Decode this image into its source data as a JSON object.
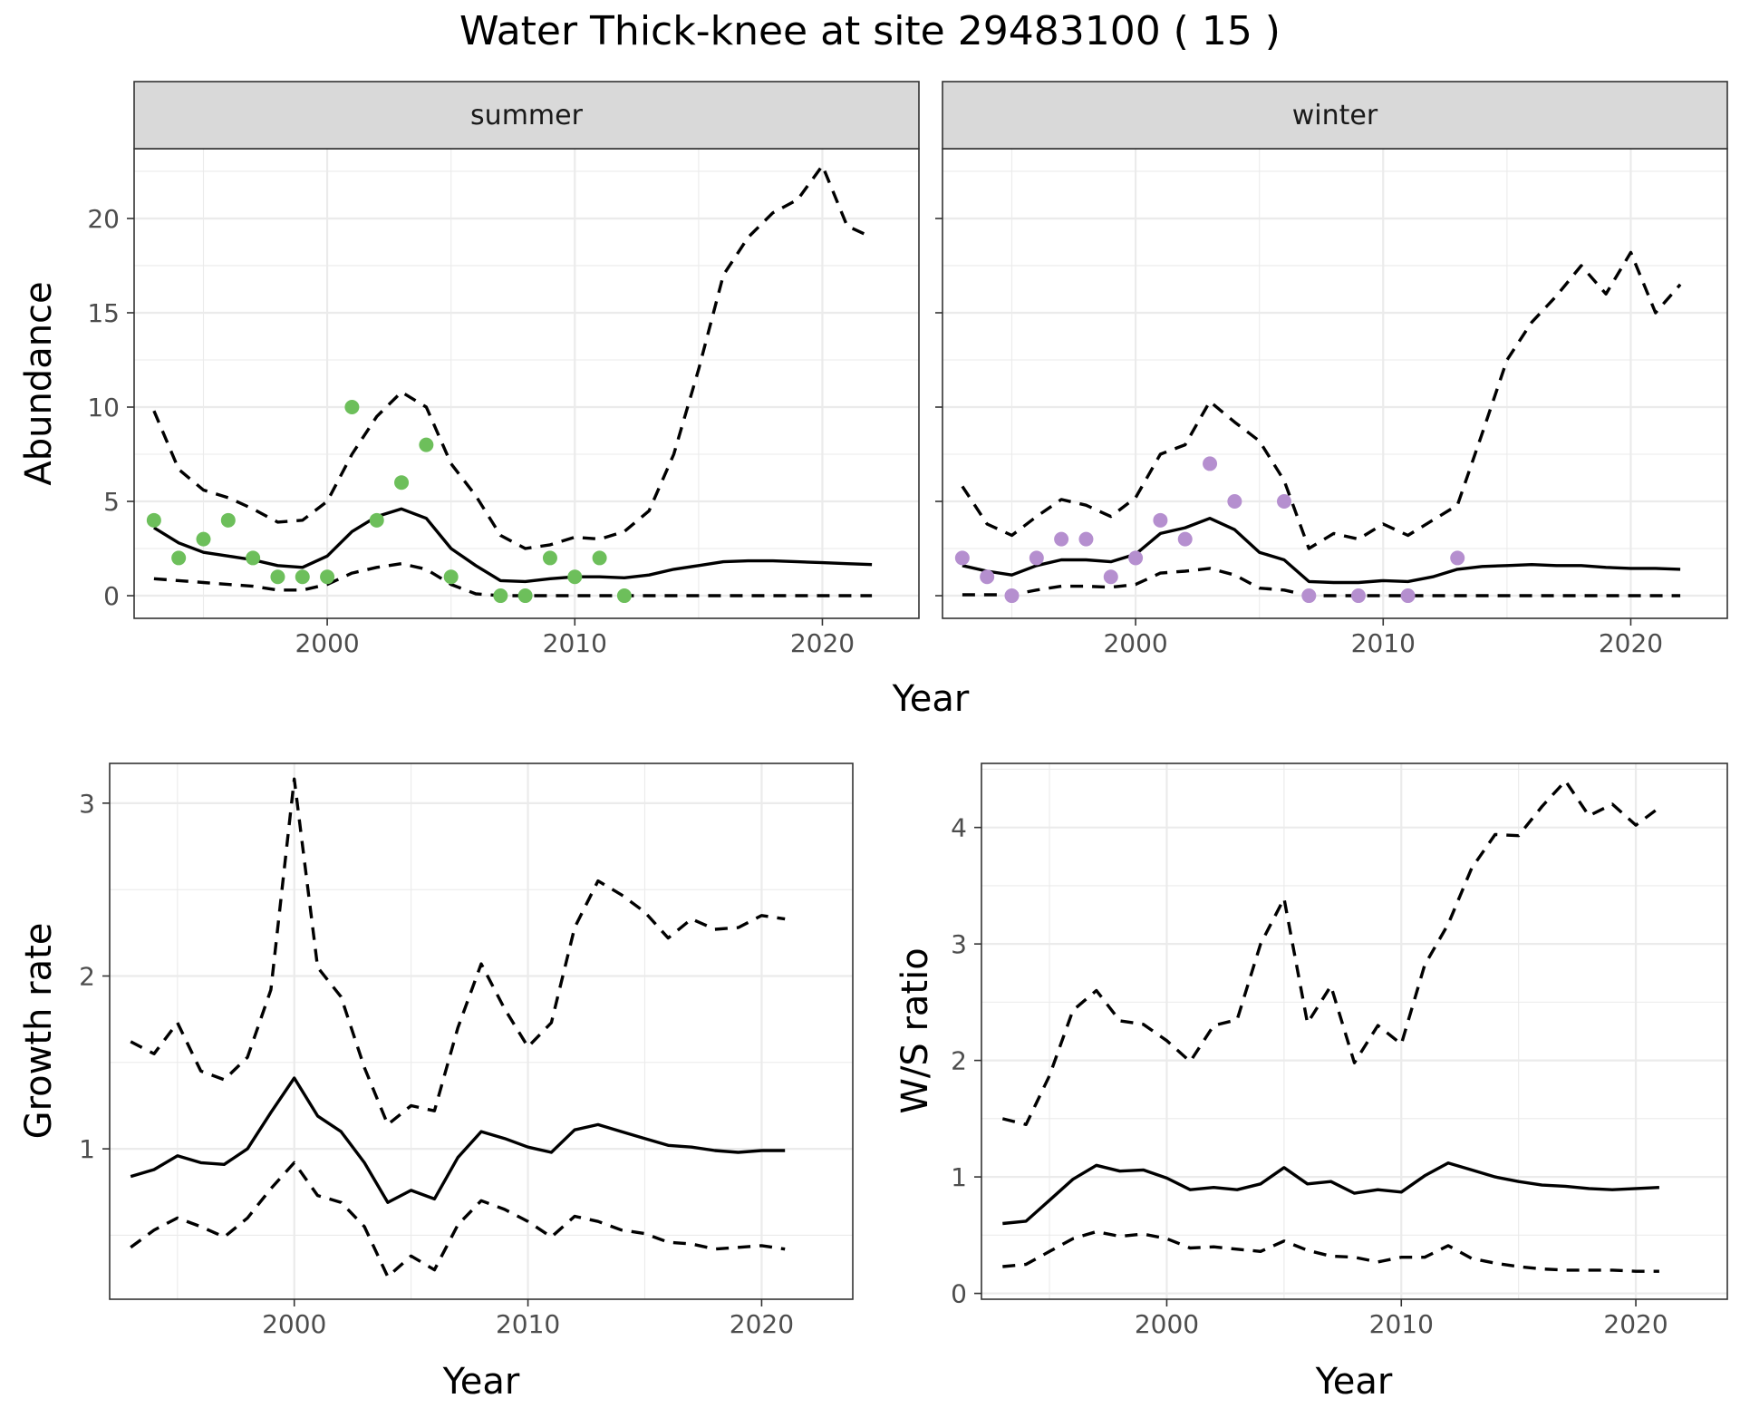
{
  "title": "Water Thick-knee at site 29483100 ( 15 )",
  "colors": {
    "summer_points": "#6dbf5b",
    "winter_points": "#b58fcf"
  },
  "chart_data": [
    {
      "type": "line",
      "facet": "summer",
      "xlabel": "Year",
      "ylabel": "Abundance",
      "xlim": [
        1992.2,
        2023.9
      ],
      "ylim": [
        -1.2,
        23.7
      ],
      "xticks": [
        2000,
        2010,
        2020
      ],
      "yticks": [
        0,
        5,
        10,
        15,
        20
      ],
      "grid": true,
      "points_color": "#6dbf5b",
      "points": {
        "x": [
          1993,
          1994,
          1995,
          1996,
          1997,
          1998,
          1999,
          2000,
          2001,
          2002,
          2003,
          2004,
          2005,
          2007,
          2008,
          2009,
          2010,
          2011,
          2012
        ],
        "y": [
          4,
          2,
          3,
          4,
          2,
          1,
          1,
          1,
          10,
          4,
          6,
          8,
          1,
          0,
          0,
          2,
          1,
          2,
          0
        ]
      },
      "series": [
        {
          "x": [
            1993,
            1994,
            1995,
            1996,
            1997,
            1998,
            1999,
            2000,
            2001,
            2002,
            2003,
            2004,
            2005,
            2006,
            2007,
            2008,
            2009,
            2010,
            2011,
            2012,
            2013,
            2014,
            2015,
            2016,
            2017,
            2018,
            2019,
            2020,
            2021,
            2022
          ],
          "values": [
            3.6,
            2.8,
            2.3,
            2.1,
            1.9,
            1.6,
            1.5,
            2.1,
            3.4,
            4.2,
            4.6,
            4.1,
            2.5,
            1.6,
            0.8,
            0.75,
            0.9,
            1.0,
            1.0,
            0.95,
            1.1,
            1.4,
            1.6,
            1.8,
            1.85,
            1.85,
            1.8,
            1.75,
            1.7,
            1.65
          ],
          "style": "solid"
        },
        {
          "x": [
            1993,
            1994,
            1995,
            1996,
            1997,
            1998,
            1999,
            2000,
            2001,
            2002,
            2003,
            2004,
            2005,
            2006,
            2007,
            2008,
            2009,
            2010,
            2011,
            2012,
            2013,
            2014,
            2015,
            2016,
            2017,
            2018,
            2019,
            2020,
            2021,
            2022
          ],
          "values": [
            9.8,
            6.7,
            5.6,
            5.2,
            4.6,
            3.9,
            4.0,
            5.0,
            7.5,
            9.5,
            10.8,
            10.0,
            7.0,
            5.3,
            3.2,
            2.5,
            2.7,
            3.1,
            3.0,
            3.4,
            4.5,
            7.5,
            12.0,
            17.0,
            19.0,
            20.3,
            21.0,
            22.8,
            19.6,
            19.0
          ],
          "style": "dashed"
        },
        {
          "x": [
            1993,
            1994,
            1995,
            1996,
            1997,
            1998,
            1999,
            2000,
            2001,
            2002,
            2003,
            2004,
            2005,
            2006,
            2007,
            2008,
            2009,
            2010,
            2011,
            2012,
            2013,
            2014,
            2015,
            2016,
            2017,
            2018,
            2019,
            2020,
            2021,
            2022
          ],
          "values": [
            0.9,
            0.8,
            0.7,
            0.6,
            0.5,
            0.3,
            0.3,
            0.6,
            1.2,
            1.5,
            1.7,
            1.4,
            0.6,
            0.1,
            0,
            0,
            0,
            0,
            0,
            0,
            0,
            0,
            0,
            0,
            0,
            0,
            0,
            0,
            0,
            0
          ],
          "style": "dashed"
        }
      ]
    },
    {
      "type": "line",
      "facet": "winter",
      "xlabel": "Year",
      "ylabel": "Abundance",
      "xlim": [
        1992.2,
        2023.9
      ],
      "ylim": [
        -1.2,
        23.7
      ],
      "xticks": [
        2000,
        2010,
        2020
      ],
      "yticks": [
        0,
        5,
        10,
        15,
        20
      ],
      "grid": true,
      "points_color": "#b58fcf",
      "points": {
        "x": [
          1993,
          1994,
          1995,
          1996,
          1997,
          1998,
          1999,
          2000,
          2001,
          2002,
          2003,
          2004,
          2006,
          2007,
          2009,
          2011,
          2013
        ],
        "y": [
          2,
          1,
          0,
          2,
          3,
          3,
          1,
          2,
          4,
          3,
          7,
          5,
          5,
          0,
          0,
          0,
          2
        ]
      },
      "series": [
        {
          "x": [
            1993,
            1994,
            1995,
            1996,
            1997,
            1998,
            1999,
            2000,
            2001,
            2002,
            2003,
            2004,
            2005,
            2006,
            2007,
            2008,
            2009,
            2010,
            2011,
            2012,
            2013,
            2014,
            2015,
            2016,
            2017,
            2018,
            2019,
            2020,
            2021,
            2022
          ],
          "values": [
            1.6,
            1.3,
            1.1,
            1.6,
            1.9,
            1.9,
            1.8,
            2.2,
            3.3,
            3.6,
            4.1,
            3.5,
            2.3,
            1.9,
            0.75,
            0.7,
            0.7,
            0.8,
            0.75,
            1.0,
            1.4,
            1.55,
            1.6,
            1.65,
            1.6,
            1.6,
            1.5,
            1.45,
            1.45,
            1.4
          ],
          "style": "solid"
        },
        {
          "x": [
            1993,
            1994,
            1995,
            1996,
            1997,
            1998,
            1999,
            2000,
            2001,
            2002,
            2003,
            2004,
            2005,
            2006,
            2007,
            2008,
            2009,
            2010,
            2011,
            2012,
            2013,
            2014,
            2015,
            2016,
            2017,
            2018,
            2019,
            2020,
            2021,
            2022
          ],
          "values": [
            5.8,
            3.8,
            3.2,
            4.2,
            5.1,
            4.8,
            4.2,
            5.2,
            7.5,
            8.0,
            10.3,
            9.2,
            8.2,
            6.1,
            2.5,
            3.3,
            3.0,
            3.8,
            3.2,
            4.0,
            4.8,
            8.6,
            12.5,
            14.5,
            15.9,
            17.5,
            16.0,
            18.2,
            15.0,
            16.5
          ],
          "style": "dashed"
        },
        {
          "x": [
            1993,
            1994,
            1995,
            1996,
            1997,
            1998,
            1999,
            2000,
            2001,
            2002,
            2003,
            2004,
            2005,
            2006,
            2007,
            2008,
            2009,
            2010,
            2011,
            2012,
            2013,
            2014,
            2015,
            2016,
            2017,
            2018,
            2019,
            2020,
            2021,
            2022
          ],
          "values": [
            0.05,
            0.05,
            0.05,
            0.3,
            0.5,
            0.5,
            0.45,
            0.6,
            1.2,
            1.3,
            1.45,
            1.1,
            0.4,
            0.3,
            0,
            0,
            0,
            0,
            0,
            0,
            0,
            0,
            0,
            0,
            0,
            0,
            0,
            0,
            0,
            0
          ],
          "style": "dashed"
        }
      ]
    },
    {
      "type": "line",
      "xlabel": "Year",
      "ylabel": "Growth rate",
      "xlim": [
        1992.1,
        2023.9
      ],
      "ylim": [
        0.13,
        3.23
      ],
      "xticks": [
        2000,
        2010,
        2020
      ],
      "yticks": [
        1,
        2,
        3
      ],
      "grid": true,
      "series": [
        {
          "x": [
            1993,
            1994,
            1995,
            1996,
            1997,
            1998,
            1999,
            2000,
            2001,
            2002,
            2003,
            2004,
            2005,
            2006,
            2007,
            2008,
            2009,
            2010,
            2011,
            2012,
            2013,
            2014,
            2015,
            2016,
            2017,
            2018,
            2019,
            2020,
            2021
          ],
          "values": [
            0.84,
            0.88,
            0.96,
            0.92,
            0.91,
            1.0,
            1.21,
            1.41,
            1.19,
            1.1,
            0.92,
            0.69,
            0.76,
            0.71,
            0.95,
            1.1,
            1.06,
            1.01,
            0.98,
            1.11,
            1.14,
            1.1,
            1.06,
            1.02,
            1.01,
            0.99,
            0.98,
            0.99,
            0.99
          ],
          "style": "solid"
        },
        {
          "x": [
            1993,
            1994,
            1995,
            1996,
            1997,
            1998,
            1999,
            2000,
            2001,
            2002,
            2003,
            2004,
            2005,
            2006,
            2007,
            2008,
            2009,
            2010,
            2011,
            2012,
            2013,
            2014,
            2015,
            2016,
            2017,
            2018,
            2019,
            2020,
            2021
          ],
          "values": [
            1.62,
            1.55,
            1.73,
            1.45,
            1.4,
            1.53,
            1.92,
            3.14,
            2.05,
            1.88,
            1.47,
            1.14,
            1.25,
            1.22,
            1.7,
            2.07,
            1.81,
            1.59,
            1.73,
            2.28,
            2.55,
            2.47,
            2.37,
            2.22,
            2.33,
            2.27,
            2.28,
            2.35,
            2.33
          ],
          "style": "dashed"
        },
        {
          "x": [
            1993,
            1994,
            1995,
            1996,
            1997,
            1998,
            1999,
            2000,
            2001,
            2002,
            2003,
            2004,
            2005,
            2006,
            2007,
            2008,
            2009,
            2010,
            2011,
            2012,
            2013,
            2014,
            2015,
            2016,
            2017,
            2018,
            2019,
            2020,
            2021
          ],
          "values": [
            0.43,
            0.53,
            0.6,
            0.55,
            0.49,
            0.6,
            0.77,
            0.92,
            0.73,
            0.69,
            0.55,
            0.26,
            0.38,
            0.3,
            0.56,
            0.7,
            0.65,
            0.58,
            0.49,
            0.61,
            0.58,
            0.53,
            0.51,
            0.46,
            0.45,
            0.42,
            0.43,
            0.44,
            0.42
          ],
          "style": "dashed"
        }
      ]
    },
    {
      "type": "line",
      "xlabel": "Year",
      "ylabel": "W/S ratio",
      "xlim": [
        1992.1,
        2023.9
      ],
      "ylim": [
        -0.05,
        4.55
      ],
      "xticks": [
        2000,
        2010,
        2020
      ],
      "yticks": [
        0,
        1,
        2,
        3,
        4
      ],
      "grid": true,
      "series": [
        {
          "x": [
            1993,
            1994,
            1995,
            1996,
            1997,
            1998,
            1999,
            2000,
            2001,
            2002,
            2003,
            2004,
            2005,
            2006,
            2007,
            2008,
            2009,
            2010,
            2011,
            2012,
            2013,
            2014,
            2015,
            2016,
            2017,
            2018,
            2019,
            2020,
            2021
          ],
          "values": [
            0.6,
            0.62,
            0.8,
            0.98,
            1.1,
            1.05,
            1.06,
            0.99,
            0.89,
            0.91,
            0.89,
            0.94,
            1.08,
            0.94,
            0.96,
            0.86,
            0.89,
            0.87,
            1.01,
            1.12,
            1.06,
            1.0,
            0.96,
            0.93,
            0.92,
            0.9,
            0.89,
            0.9,
            0.91
          ],
          "style": "solid"
        },
        {
          "x": [
            1993,
            1994,
            1995,
            1996,
            1997,
            1998,
            1999,
            2000,
            2001,
            2002,
            2003,
            2004,
            2005,
            2006,
            2007,
            2008,
            2009,
            2010,
            2011,
            2012,
            2013,
            2014,
            2015,
            2016,
            2017,
            2018,
            2019,
            2020,
            2021
          ],
          "values": [
            1.5,
            1.45,
            1.87,
            2.43,
            2.6,
            2.34,
            2.31,
            2.17,
            1.99,
            2.3,
            2.35,
            3.0,
            3.39,
            2.32,
            2.64,
            1.98,
            2.3,
            2.14,
            2.82,
            3.17,
            3.65,
            3.94,
            3.93,
            4.18,
            4.4,
            4.1,
            4.2,
            4.02,
            4.17
          ],
          "style": "dashed"
        },
        {
          "x": [
            1993,
            1994,
            1995,
            1996,
            1997,
            1998,
            1999,
            2000,
            2001,
            2002,
            2003,
            2004,
            2005,
            2006,
            2007,
            2008,
            2009,
            2010,
            2011,
            2012,
            2013,
            2014,
            2015,
            2016,
            2017,
            2018,
            2019,
            2020,
            2021
          ],
          "values": [
            0.23,
            0.25,
            0.36,
            0.47,
            0.53,
            0.49,
            0.51,
            0.47,
            0.39,
            0.4,
            0.38,
            0.36,
            0.45,
            0.37,
            0.32,
            0.31,
            0.27,
            0.31,
            0.31,
            0.41,
            0.3,
            0.26,
            0.23,
            0.21,
            0.2,
            0.2,
            0.2,
            0.19,
            0.19
          ],
          "style": "dashed"
        }
      ]
    }
  ]
}
